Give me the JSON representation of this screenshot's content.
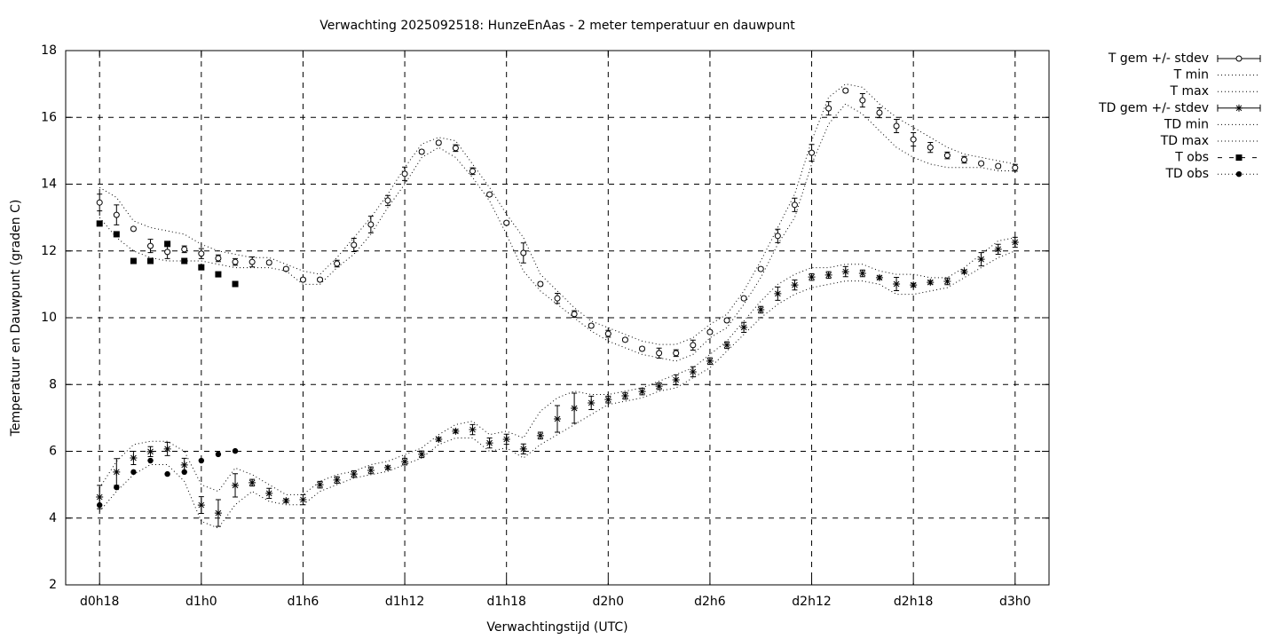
{
  "chart_data": {
    "type": "line",
    "title": "Verwachting 2025092518: HunzeEnAas - 2 meter temperatuur en dauwpunt",
    "x_label": "Verwachtingstijd (UTC)",
    "y_label": "Temperatuur en Dauwpunt (graden C)",
    "x": [
      18,
      19,
      20,
      21,
      22,
      23,
      24,
      25,
      26,
      27,
      28,
      29,
      30,
      31,
      32,
      33,
      34,
      35,
      36,
      37,
      38,
      39,
      40,
      41,
      42,
      43,
      44,
      45,
      46,
      47,
      48,
      49,
      50,
      51,
      52,
      53,
      54,
      55,
      56,
      57,
      58,
      59,
      60,
      61,
      62,
      63,
      64,
      65,
      66,
      67,
      68,
      69,
      70,
      71,
      72
    ],
    "xlim": [
      16,
      74
    ],
    "xticks": [
      {
        "value": 18,
        "label": "d0h18"
      },
      {
        "value": 24,
        "label": "d1h0"
      },
      {
        "value": 30,
        "label": "d1h6"
      },
      {
        "value": 36,
        "label": "d1h12"
      },
      {
        "value": 42,
        "label": "d1h18"
      },
      {
        "value": 48,
        "label": "d2h0"
      },
      {
        "value": 54,
        "label": "d2h6"
      },
      {
        "value": 60,
        "label": "d2h12"
      },
      {
        "value": 66,
        "label": "d2h18"
      },
      {
        "value": 72,
        "label": "d3h0"
      }
    ],
    "ylim": [
      2,
      18
    ],
    "yticks": [
      2,
      4,
      6,
      8,
      10,
      12,
      14,
      16,
      18
    ],
    "grid": true,
    "legend": "right",
    "series": [
      {
        "name": "T gem +/- stdev",
        "color": "#000000",
        "marker": "circle-open",
        "values": [
          13.45,
          13.08,
          12.66,
          12.15,
          11.97,
          12.05,
          11.92,
          11.78,
          11.67,
          11.67,
          11.65,
          11.46,
          11.14,
          11.14,
          11.62,
          12.18,
          12.79,
          13.51,
          14.31,
          14.97,
          15.24,
          15.08,
          14.39,
          13.69,
          12.84,
          11.94,
          11.01,
          10.58,
          10.11,
          9.76,
          9.52,
          9.34,
          9.07,
          8.94,
          8.94,
          9.18,
          9.57,
          9.92,
          10.58,
          11.46,
          12.45,
          13.38,
          14.94,
          16.27,
          16.8,
          16.51,
          16.14,
          15.74,
          15.34,
          15.1,
          14.86,
          14.73,
          14.62,
          14.54,
          14.49
        ],
        "errors": [
          0.25,
          0.3,
          0.05,
          0.2,
          0.2,
          0.1,
          0.15,
          0.1,
          0.1,
          0.15,
          0.05,
          0.05,
          0.05,
          0.05,
          0.1,
          0.2,
          0.25,
          0.15,
          0.2,
          0.05,
          0.05,
          0.1,
          0.1,
          0.05,
          0.05,
          0.3,
          0.05,
          0.15,
          0.1,
          0.05,
          0.1,
          0.05,
          0.05,
          0.15,
          0.1,
          0.15,
          0.05,
          0.05,
          0.05,
          0.05,
          0.2,
          0.2,
          0.25,
          0.2,
          0.05,
          0.2,
          0.15,
          0.2,
          0.2,
          0.15,
          0.1,
          0.1,
          0.05,
          0.05,
          0.1
        ]
      },
      {
        "name": "T min",
        "color": "#000000",
        "dash": "dotted",
        "values": [
          13.0,
          12.4,
          12.0,
          11.8,
          11.7,
          11.7,
          11.7,
          11.6,
          11.5,
          11.5,
          11.5,
          11.4,
          11.0,
          11.0,
          11.5,
          11.9,
          12.5,
          13.3,
          14.0,
          14.8,
          15.1,
          14.8,
          14.2,
          13.5,
          12.5,
          11.4,
          10.8,
          10.4,
          10.0,
          9.6,
          9.3,
          9.1,
          8.9,
          8.8,
          8.7,
          8.9,
          9.4,
          9.7,
          10.4,
          11.2,
          12.2,
          13.0,
          14.6,
          15.8,
          16.4,
          16.1,
          15.6,
          15.1,
          14.8,
          14.6,
          14.5,
          14.5,
          14.5,
          14.4,
          14.4
        ]
      },
      {
        "name": "T max",
        "color": "#000000",
        "dash": "dotted",
        "values": [
          13.9,
          13.6,
          12.9,
          12.7,
          12.6,
          12.5,
          12.2,
          12.0,
          11.9,
          11.8,
          11.8,
          11.6,
          11.4,
          11.3,
          11.8,
          12.4,
          13.0,
          13.7,
          14.5,
          15.2,
          15.4,
          15.3,
          14.6,
          13.9,
          13.1,
          12.4,
          11.3,
          10.8,
          10.3,
          9.9,
          9.7,
          9.5,
          9.3,
          9.2,
          9.2,
          9.4,
          9.8,
          10.1,
          10.8,
          11.7,
          12.7,
          13.7,
          15.3,
          16.6,
          17.0,
          16.9,
          16.4,
          16.0,
          15.7,
          15.4,
          15.1,
          14.9,
          14.8,
          14.7,
          14.6
        ]
      },
      {
        "name": "TD gem +/- stdev",
        "color": "#000000",
        "marker": "star",
        "values": [
          4.63,
          5.38,
          5.8,
          5.99,
          6.07,
          5.59,
          4.39,
          4.15,
          4.98,
          5.06,
          4.74,
          4.52,
          4.55,
          5.0,
          5.14,
          5.32,
          5.43,
          5.51,
          5.69,
          5.91,
          6.36,
          6.6,
          6.65,
          6.25,
          6.36,
          6.07,
          6.47,
          6.97,
          7.29,
          7.45,
          7.55,
          7.66,
          7.79,
          7.95,
          8.14,
          8.38,
          8.7,
          9.18,
          9.71,
          10.24,
          10.72,
          10.98,
          11.22,
          11.28,
          11.38,
          11.33,
          11.2,
          11.01,
          10.98,
          11.06,
          11.09,
          11.38,
          11.75,
          12.05,
          12.26
        ],
        "errors": [
          0.35,
          0.4,
          0.2,
          0.15,
          0.2,
          0.2,
          0.25,
          0.4,
          0.35,
          0.1,
          0.15,
          0.05,
          0.15,
          0.1,
          0.1,
          0.1,
          0.1,
          0.05,
          0.1,
          0.1,
          0.05,
          0.05,
          0.15,
          0.15,
          0.15,
          0.15,
          0.1,
          0.4,
          0.45,
          0.2,
          0.1,
          0.1,
          0.1,
          0.1,
          0.15,
          0.15,
          0.1,
          0.1,
          0.15,
          0.1,
          0.2,
          0.15,
          0.1,
          0.1,
          0.15,
          0.1,
          0.05,
          0.2,
          0.05,
          0.05,
          0.1,
          0.05,
          0.2,
          0.15,
          0.15
        ]
      },
      {
        "name": "TD min",
        "color": "#000000",
        "dash": "dotted",
        "values": [
          4.2,
          4.8,
          5.3,
          5.6,
          5.6,
          5.1,
          3.9,
          3.7,
          4.4,
          4.8,
          4.5,
          4.4,
          4.4,
          4.8,
          5.0,
          5.2,
          5.3,
          5.4,
          5.6,
          5.8,
          6.2,
          6.4,
          6.4,
          6.0,
          6.1,
          5.8,
          6.2,
          6.5,
          6.8,
          7.1,
          7.4,
          7.5,
          7.6,
          7.8,
          7.9,
          8.2,
          8.5,
          9.0,
          9.5,
          10.0,
          10.4,
          10.7,
          10.9,
          11.0,
          11.1,
          11.1,
          11.0,
          10.7,
          10.7,
          10.8,
          10.9,
          11.2,
          11.5,
          11.8,
          12.0
        ]
      },
      {
        "name": "TD max",
        "color": "#000000",
        "dash": "dotted",
        "values": [
          4.9,
          5.7,
          6.2,
          6.3,
          6.3,
          6.0,
          5.0,
          4.8,
          5.5,
          5.3,
          5.0,
          4.7,
          4.7,
          5.1,
          5.3,
          5.4,
          5.6,
          5.7,
          5.9,
          6.1,
          6.5,
          6.8,
          6.9,
          6.5,
          6.6,
          6.4,
          7.2,
          7.6,
          7.8,
          7.7,
          7.7,
          7.8,
          7.9,
          8.1,
          8.3,
          8.5,
          8.9,
          9.3,
          9.9,
          10.5,
          11.0,
          11.3,
          11.5,
          11.5,
          11.6,
          11.6,
          11.4,
          11.3,
          11.3,
          11.2,
          11.2,
          11.5,
          11.9,
          12.3,
          12.4
        ]
      },
      {
        "name": "T obs",
        "color": "#000000",
        "marker": "square",
        "values": [
          12.82,
          12.5,
          11.7,
          11.7,
          12.21,
          11.7,
          11.51,
          11.3,
          11.01,
          null,
          null,
          null,
          null,
          null,
          null,
          null,
          null,
          null,
          null,
          null,
          null,
          null,
          null,
          null,
          null,
          null,
          null,
          null,
          null,
          null,
          null,
          null,
          null,
          null,
          null,
          null,
          null,
          null,
          null,
          null,
          null,
          null,
          null,
          null,
          null,
          null,
          null,
          null,
          null,
          null,
          null,
          null,
          null,
          null,
          null
        ]
      },
      {
        "name": "TD obs",
        "color": "#000000",
        "marker": "circle",
        "values": [
          4.39,
          4.92,
          5.38,
          5.72,
          5.32,
          5.38,
          5.72,
          5.91,
          6.01,
          null,
          null,
          null,
          null,
          null,
          null,
          null,
          null,
          null,
          null,
          null,
          null,
          null,
          null,
          null,
          null,
          null,
          null,
          null,
          null,
          null,
          null,
          null,
          null,
          null,
          null,
          null,
          null,
          null,
          null,
          null,
          null,
          null,
          null,
          null,
          null,
          null,
          null,
          null,
          null,
          null,
          null,
          null,
          null,
          null,
          null
        ]
      }
    ]
  }
}
